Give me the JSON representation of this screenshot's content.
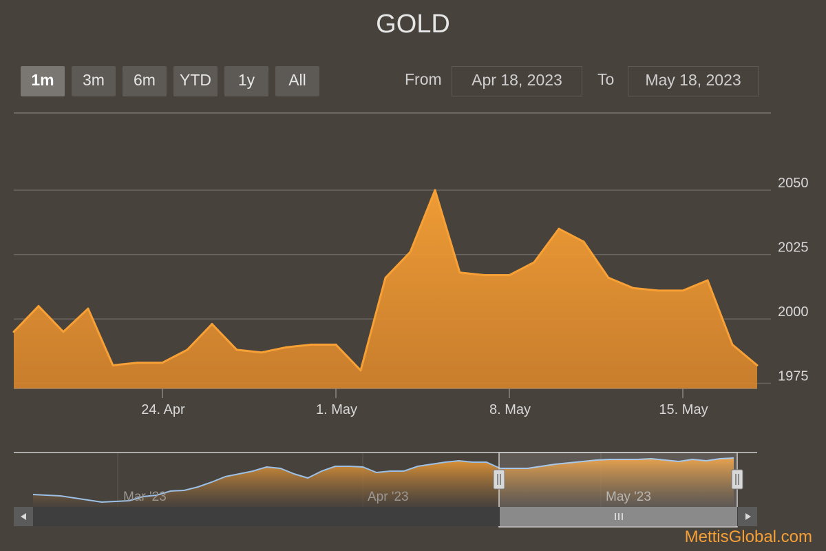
{
  "title": "GOLD",
  "range_selector": {
    "buttons": [
      "1m",
      "3m",
      "6m",
      "YTD",
      "1y",
      "All"
    ],
    "selected": "1m",
    "from_label": "From",
    "from_value": "Apr 18, 2023",
    "to_label": "To",
    "to_value": "May 18, 2023"
  },
  "brand": "MettisGlobal.com",
  "colors": {
    "series": "#f7a035",
    "navigator_line": "#9cc0e6",
    "background": "#48423d"
  },
  "chart_data": {
    "type": "area",
    "title": "GOLD",
    "ylim": [
      1973,
      2080
    ],
    "y_ticks": [
      1975,
      2000,
      2025,
      2050
    ],
    "x_ticks": [
      {
        "date": "2023-04-24",
        "label": "24. Apr"
      },
      {
        "date": "2023-05-01",
        "label": "1. May"
      },
      {
        "date": "2023-05-08",
        "label": "8. May"
      },
      {
        "date": "2023-05-15",
        "label": "15. May"
      }
    ],
    "x_range": [
      "2023-04-18",
      "2023-05-18"
    ],
    "grid": true,
    "series": [
      {
        "x": [
          "2023-04-18",
          "2023-04-19",
          "2023-04-20",
          "2023-04-21",
          "2023-04-22",
          "2023-04-23",
          "2023-04-24",
          "2023-04-25",
          "2023-04-26",
          "2023-04-27",
          "2023-04-28",
          "2023-04-29",
          "2023-04-30",
          "2023-05-01",
          "2023-05-02",
          "2023-05-03",
          "2023-05-04",
          "2023-05-05",
          "2023-05-06",
          "2023-05-07",
          "2023-05-08",
          "2023-05-09",
          "2023-05-10",
          "2023-05-11",
          "2023-05-12",
          "2023-05-13",
          "2023-05-14",
          "2023-05-15",
          "2023-05-16",
          "2023-05-17",
          "2023-05-18"
        ],
        "values": [
          1995,
          2005,
          1995,
          2004,
          1982,
          1983,
          1983,
          1988,
          1998,
          1988,
          1987,
          1989,
          1990,
          1990,
          1980,
          2016,
          2026,
          2050,
          2018,
          2017,
          2017,
          2022,
          2035,
          2030,
          2016,
          2012,
          2011,
          2011,
          2015,
          1990,
          1982
        ]
      }
    ],
    "navigator": {
      "x_labels": [
        "Mar '23",
        "Apr '23",
        "May '23"
      ],
      "selection": [
        "2023-04-18",
        "2023-05-18"
      ]
    }
  }
}
